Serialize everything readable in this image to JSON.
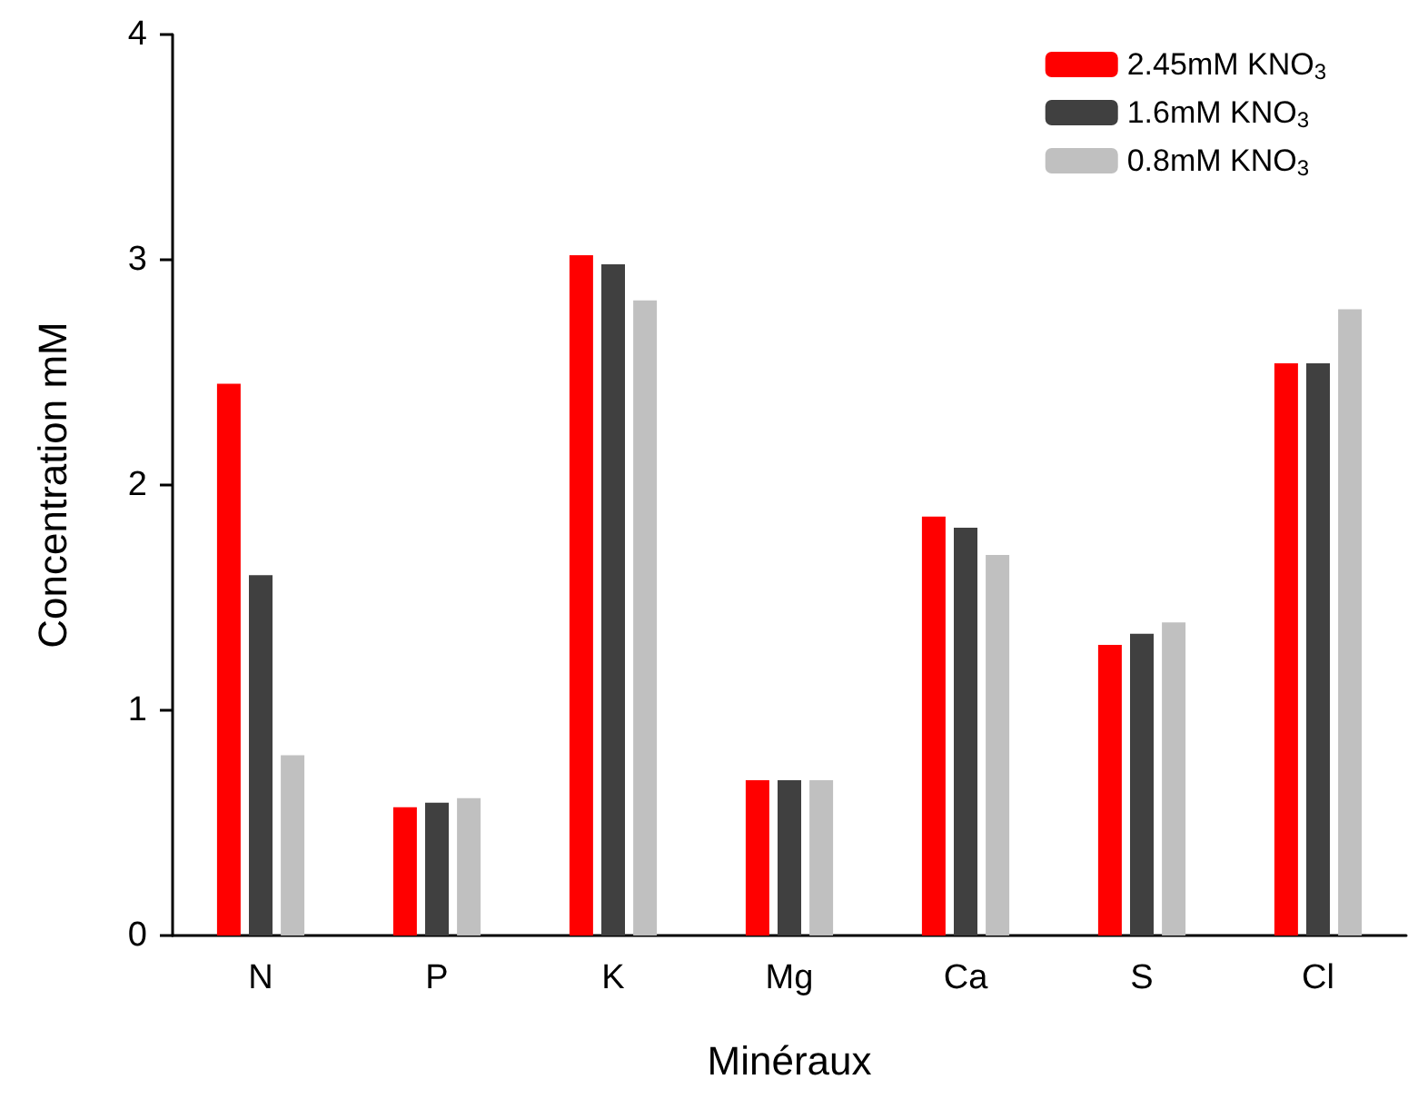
{
  "chart_data": {
    "type": "bar",
    "xlabel": "Minéraux",
    "ylabel": "Concentration mM",
    "categories": [
      "N",
      "P",
      "K",
      "Mg",
      "Ca",
      "S",
      "Cl"
    ],
    "series": [
      {
        "name": "2.45mM KNO$_{3}$",
        "color": "#ff0000",
        "values": [
          2.45,
          0.57,
          3.02,
          0.69,
          1.86,
          1.29,
          2.54
        ]
      },
      {
        "name": "1.6mM KNO$_{3}$",
        "color": "#404040",
        "values": [
          1.6,
          0.59,
          2.98,
          0.69,
          1.81,
          1.34,
          2.54
        ]
      },
      {
        "name": "0.8mM KNO$_{3}$",
        "color": "#c0c0c0",
        "values": [
          0.8,
          0.61,
          2.82,
          0.69,
          1.69,
          1.39,
          2.78
        ]
      }
    ],
    "ylim": [
      0,
      4
    ],
    "yticks": [
      0,
      1,
      2,
      3,
      4
    ],
    "grid": false,
    "legend": "top right"
  }
}
